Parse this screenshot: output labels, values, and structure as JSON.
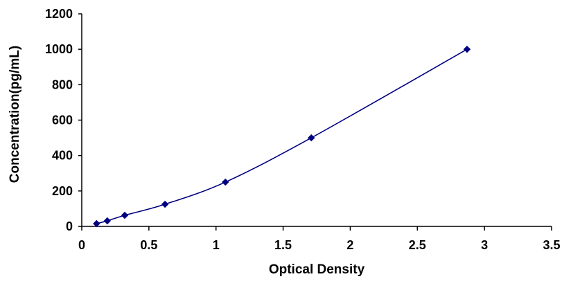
{
  "chart_data": {
    "type": "scatter",
    "title": "",
    "xlabel": "Optical Density",
    "ylabel": "Concentration(pg/mL)",
    "xlim": [
      0,
      3.5
    ],
    "ylim": [
      0,
      1200
    ],
    "x_ticks": [
      0,
      0.5,
      1,
      1.5,
      2,
      2.5,
      3,
      3.5
    ],
    "x_tick_labels": [
      "0",
      "0.5",
      "1",
      "1.5",
      "2",
      "2.5",
      "3",
      "3.5"
    ],
    "y_ticks": [
      0,
      200,
      400,
      600,
      800,
      1000,
      1200
    ],
    "y_tick_labels": [
      "0",
      "200",
      "400",
      "600",
      "800",
      "1000",
      "1200"
    ],
    "grid": false,
    "legend": "none",
    "line_style": "smoothed line with diamond markers",
    "series": [
      {
        "x": [
          0.11,
          0.19,
          0.32,
          0.62,
          1.07,
          1.71,
          2.87
        ],
        "y": [
          15.6,
          31.2,
          62.5,
          125,
          250,
          500,
          1000
        ],
        "color": "#000080"
      }
    ]
  }
}
